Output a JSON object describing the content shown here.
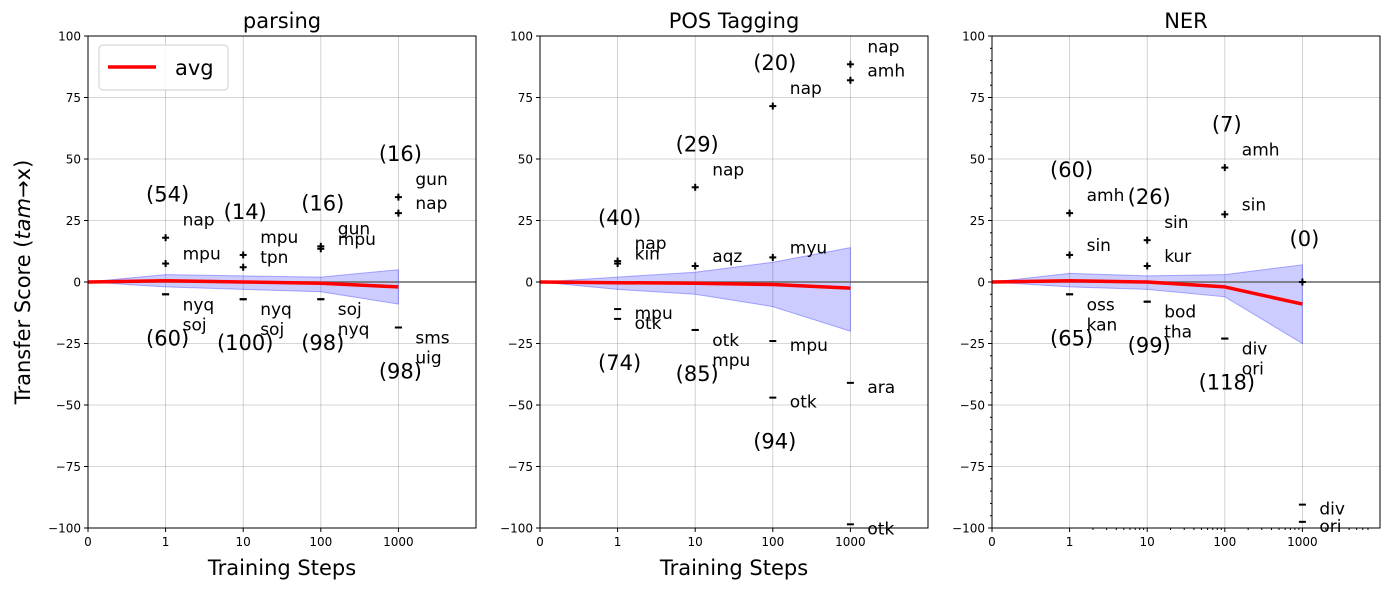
{
  "figure": {
    "ylabel": "Transfer Score (tam→x)",
    "xlabel": "Training Steps",
    "legend_label": "avg",
    "colors": {
      "avg": "#ff0000",
      "band": "#0000ff",
      "zero_line": "#666666"
    }
  },
  "chart_data": [
    {
      "type": "scatter",
      "title": "parsing",
      "xlabel": "Training Steps",
      "ylabel": "Transfer Score (tam→x)",
      "xscale": "symlog",
      "xticks": [
        "0",
        "1",
        "10",
        "100",
        "1000"
      ],
      "ylim": [
        -100,
        100
      ],
      "yticks": [
        "100",
        "75",
        "50",
        "25",
        "0",
        "−25",
        "−50",
        "−75",
        "−100"
      ],
      "legend": {
        "entries": [
          "avg"
        ],
        "position": "top-left"
      },
      "avg": {
        "x": [
          0,
          1,
          10,
          100,
          1000
        ],
        "y": [
          0,
          0.5,
          0,
          -0.5,
          -2
        ]
      },
      "band": {
        "x": [
          0,
          1,
          10,
          100,
          1000
        ],
        "upper": [
          0,
          3,
          2.5,
          2,
          5
        ],
        "lower": [
          0,
          -2,
          -3,
          -4,
          -9
        ]
      },
      "points": [
        {
          "x": 1,
          "y": 18,
          "marker": "+",
          "label": "nap"
        },
        {
          "x": 1,
          "y": 7.5,
          "marker": "+",
          "label": "mpu"
        },
        {
          "x": 1,
          "y": -5,
          "marker": "-",
          "label": "nyq"
        },
        {
          "x": 1,
          "y": -5,
          "marker": "-",
          "label": "soj"
        },
        {
          "x": 10,
          "y": 11,
          "marker": "+",
          "label": "mpu"
        },
        {
          "x": 10,
          "y": 6,
          "marker": "+",
          "label": "tpn"
        },
        {
          "x": 10,
          "y": -7,
          "marker": "-",
          "label": "nyq"
        },
        {
          "x": 10,
          "y": -7,
          "marker": "-",
          "label": "soj"
        },
        {
          "x": 100,
          "y": 14.5,
          "marker": "+",
          "label": "gun"
        },
        {
          "x": 100,
          "y": 13.5,
          "marker": "+",
          "label": "mpu"
        },
        {
          "x": 100,
          "y": -7,
          "marker": "-",
          "label": "soj"
        },
        {
          "x": 100,
          "y": -7,
          "marker": "-",
          "label": "nyq"
        },
        {
          "x": 1000,
          "y": 34.5,
          "marker": "+",
          "label": "gun"
        },
        {
          "x": 1000,
          "y": 28,
          "marker": "+",
          "label": "nap"
        },
        {
          "x": 1000,
          "y": -18.5,
          "marker": "-",
          "label": "sms"
        },
        {
          "x": 1000,
          "y": -18.5,
          "marker": "-",
          "label": "uig"
        }
      ],
      "counts": [
        {
          "x": 1,
          "above": "(54)",
          "below": "(60)"
        },
        {
          "x": 10,
          "above": "(14)",
          "below": "(100)"
        },
        {
          "x": 100,
          "above": "(16)",
          "below": "(98)"
        },
        {
          "x": 1000,
          "above": "(16)",
          "below": "(98)"
        }
      ]
    },
    {
      "type": "scatter",
      "title": "POS Tagging",
      "xlabel": "Training Steps",
      "xscale": "symlog",
      "xticks": [
        "0",
        "1",
        "10",
        "100",
        "1000"
      ],
      "ylim": [
        -100,
        100
      ],
      "yticks": [
        "100",
        "75",
        "50",
        "25",
        "0",
        "−25",
        "−50",
        "−75",
        "−100"
      ],
      "avg": {
        "x": [
          0,
          1,
          10,
          100,
          1000
        ],
        "y": [
          0,
          -0.3,
          -0.5,
          -1,
          -2.5
        ]
      },
      "band": {
        "x": [
          0,
          1,
          10,
          100,
          1000
        ],
        "upper": [
          0,
          2,
          4,
          8,
          14
        ],
        "lower": [
          0,
          -3,
          -5,
          -10,
          -20
        ]
      },
      "points": [
        {
          "x": 1,
          "y": 8.5,
          "marker": "+",
          "label": "nap"
        },
        {
          "x": 1,
          "y": 7.5,
          "marker": "+",
          "label": "kin"
        },
        {
          "x": 1,
          "y": -11,
          "marker": "-",
          "label": "mpu"
        },
        {
          "x": 1,
          "y": -15,
          "marker": "-",
          "label": "otk"
        },
        {
          "x": 10,
          "y": 38.5,
          "marker": "+",
          "label": "nap"
        },
        {
          "x": 10,
          "y": 6.5,
          "marker": "+",
          "label": "aqz"
        },
        {
          "x": 10,
          "y": -19.5,
          "marker": "-",
          "label": "otk"
        },
        {
          "x": 10,
          "y": -19.5,
          "marker": "-",
          "label": "mpu"
        },
        {
          "x": 100,
          "y": 71.5,
          "marker": "+",
          "label": "nap"
        },
        {
          "x": 100,
          "y": 10,
          "marker": "+",
          "label": "myu"
        },
        {
          "x": 100,
          "y": -24,
          "marker": "-",
          "label": "mpu"
        },
        {
          "x": 100,
          "y": -47,
          "marker": "-",
          "label": "otk"
        },
        {
          "x": 1000,
          "y": 88.5,
          "marker": "+",
          "label": "nap"
        },
        {
          "x": 1000,
          "y": 82,
          "marker": "+",
          "label": "amh"
        },
        {
          "x": 1000,
          "y": -41,
          "marker": "-",
          "label": "ara"
        },
        {
          "x": 1000,
          "y": -98.5,
          "marker": "-",
          "label": "otk"
        }
      ],
      "counts": [
        {
          "x": 1,
          "above": "(40)",
          "below": "(74)"
        },
        {
          "x": 10,
          "above": "(29)",
          "below": "(85)"
        },
        {
          "x": 100,
          "above": "(20)",
          "below": "(94)"
        }
      ]
    },
    {
      "type": "scatter",
      "title": "NER",
      "xscale": "symlog",
      "xticks": [
        "0",
        "1",
        "10",
        "100",
        "1000"
      ],
      "ylim": [
        -100,
        100
      ],
      "yticks": [
        "100",
        "75",
        "50",
        "25",
        "0",
        "−25",
        "−50",
        "−75",
        "−100"
      ],
      "avg": {
        "x": [
          0,
          1,
          10,
          100,
          1000
        ],
        "y": [
          0,
          0.5,
          0,
          -2,
          -9
        ]
      },
      "band": {
        "x": [
          0,
          1,
          10,
          100,
          1000
        ],
        "upper": [
          0,
          3.5,
          2.5,
          3,
          7
        ],
        "lower": [
          0,
          -2,
          -3,
          -6,
          -25
        ]
      },
      "points": [
        {
          "x": 1,
          "y": 28,
          "marker": "+",
          "label": "amh"
        },
        {
          "x": 1,
          "y": 11,
          "marker": "+",
          "label": "sin"
        },
        {
          "x": 1,
          "y": -5,
          "marker": "-",
          "label": "oss"
        },
        {
          "x": 1,
          "y": -5,
          "marker": "-",
          "label": "kan"
        },
        {
          "x": 10,
          "y": 17,
          "marker": "+",
          "label": "sin"
        },
        {
          "x": 10,
          "y": 6.5,
          "marker": "+",
          "label": "kur"
        },
        {
          "x": 10,
          "y": -8,
          "marker": "-",
          "label": "bod"
        },
        {
          "x": 10,
          "y": -8,
          "marker": "-",
          "label": "tha"
        },
        {
          "x": 100,
          "y": 46.5,
          "marker": "+",
          "label": "amh"
        },
        {
          "x": 100,
          "y": 27.5,
          "marker": "+",
          "label": "sin"
        },
        {
          "x": 100,
          "y": -23,
          "marker": "-",
          "label": "div"
        },
        {
          "x": 100,
          "y": -23,
          "marker": "-",
          "label": "ori"
        },
        {
          "x": 1000,
          "y": 0,
          "marker": "+",
          "label": ""
        },
        {
          "x": 1000,
          "y": -90.5,
          "marker": "-",
          "label": "div"
        },
        {
          "x": 1000,
          "y": -97.5,
          "marker": "-",
          "label": "ori"
        }
      ],
      "counts": [
        {
          "x": 1,
          "above": "(60)",
          "below": "(65)"
        },
        {
          "x": 10,
          "above": "(26)",
          "below": "(99)"
        },
        {
          "x": 100,
          "above": "(7)",
          "below": "(118)"
        },
        {
          "x": 1000,
          "above": "(0)",
          "below": ""
        }
      ]
    }
  ]
}
